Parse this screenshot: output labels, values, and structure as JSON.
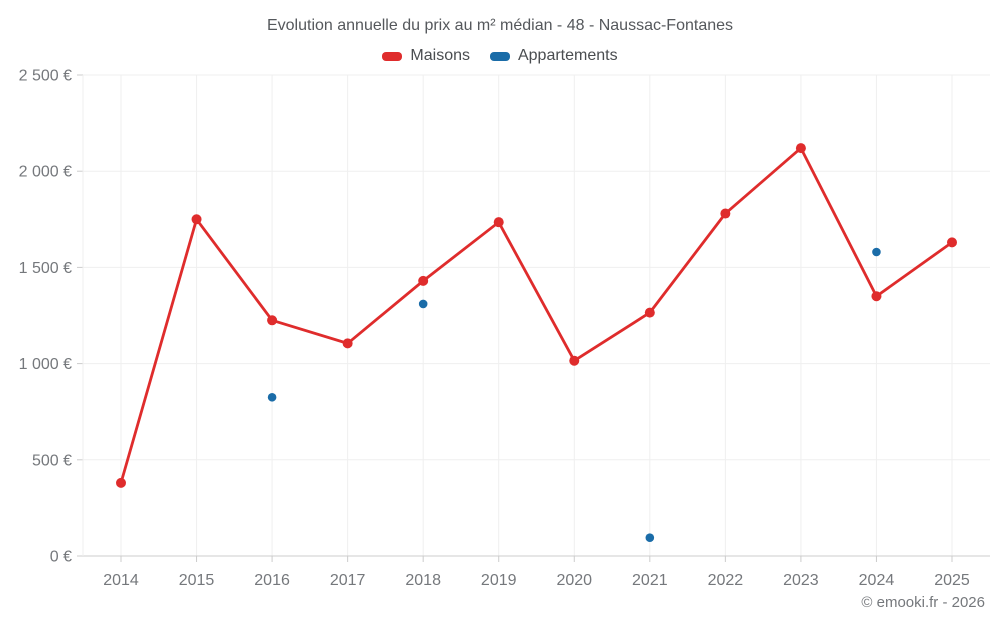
{
  "chart_data": {
    "type": "line",
    "title": "Evolution annuelle du prix au m² médian - 48 - Naussac-Fontanes",
    "categories": [
      "2014",
      "2015",
      "2016",
      "2017",
      "2018",
      "2019",
      "2020",
      "2021",
      "2022",
      "2023",
      "2024",
      "2025"
    ],
    "series": [
      {
        "name": "Maisons",
        "color": "#df2c2c",
        "line": true,
        "marker_radius": 5,
        "values": [
          380,
          1750,
          1225,
          1105,
          1430,
          1735,
          1015,
          1265,
          1780,
          2120,
          1350,
          1630
        ]
      },
      {
        "name": "Appartements",
        "color": "#1a6ca8",
        "line": false,
        "marker_radius": 4.3,
        "values": [
          null,
          null,
          825,
          null,
          1310,
          null,
          null,
          95,
          null,
          null,
          1580,
          null
        ]
      }
    ],
    "ylabel": "",
    "xlabel": "",
    "ylim": [
      0,
      2500
    ],
    "ytick_values": [
      0,
      500,
      1000,
      1500,
      2000,
      2500
    ],
    "ytick_labels": [
      "0 €",
      "500 €",
      "1 000 €",
      "1 500 €",
      "2 000 €",
      "2 500 €"
    ],
    "grid": true,
    "legend_position": "top",
    "grid_color": "#efefef",
    "axis_color": "#cccccc",
    "tick_text_color": "#75787c",
    "title_color": "#55585c"
  },
  "footer": {
    "copyright": "© emooki.fr - 2026"
  }
}
